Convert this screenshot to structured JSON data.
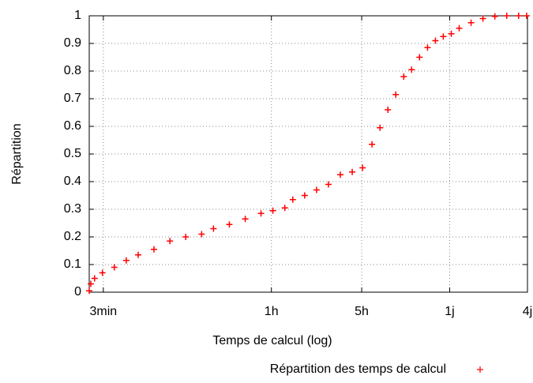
{
  "chart_data": {
    "type": "scatter",
    "x_label": "Temps de calcul (log)",
    "y_label": "Répartition",
    "log_x": true,
    "grid": true,
    "legend_position": "bottom-right",
    "xlim": [
      140,
      345600
    ],
    "ylim": [
      0,
      1
    ],
    "xticks": [
      {
        "value": 180,
        "label": "3min"
      },
      {
        "value": 3600,
        "label": "1h"
      },
      {
        "value": 18000,
        "label": "5h"
      },
      {
        "value": 86400,
        "label": "1j"
      },
      {
        "value": 345600,
        "label": "4j"
      }
    ],
    "yticks": [
      0,
      0.1,
      0.2,
      0.3,
      0.4,
      0.5,
      0.6,
      0.7,
      0.8,
      0.9,
      1
    ],
    "series": [
      {
        "name": "Répartition des temps de calcul",
        "color": "#ff0000",
        "x": [
          140,
          144,
          154,
          177,
          219,
          271,
          335,
          444,
          590,
          782,
          1038,
          1283,
          1702,
          2259,
          2992,
          3698,
          4571,
          5272,
          6516,
          8054,
          9954,
          12303,
          15205,
          18281,
          21627,
          24946,
          28708,
          33036,
          38107,
          43853,
          50466,
          58210,
          66988,
          77090,
          88920,
          102329,
          126474,
          156315,
          193197,
          238781,
          295121,
          340408
        ],
        "values": [
          0.005,
          0.03,
          0.05,
          0.07,
          0.09,
          0.115,
          0.135,
          0.155,
          0.185,
          0.2,
          0.21,
          0.23,
          0.245,
          0.265,
          0.285,
          0.295,
          0.305,
          0.335,
          0.35,
          0.37,
          0.39,
          0.425,
          0.435,
          0.45,
          0.535,
          0.595,
          0.66,
          0.715,
          0.78,
          0.805,
          0.85,
          0.885,
          0.91,
          0.925,
          0.935,
          0.955,
          0.975,
          0.99,
          0.998,
          1,
          1,
          1
        ]
      }
    ]
  }
}
